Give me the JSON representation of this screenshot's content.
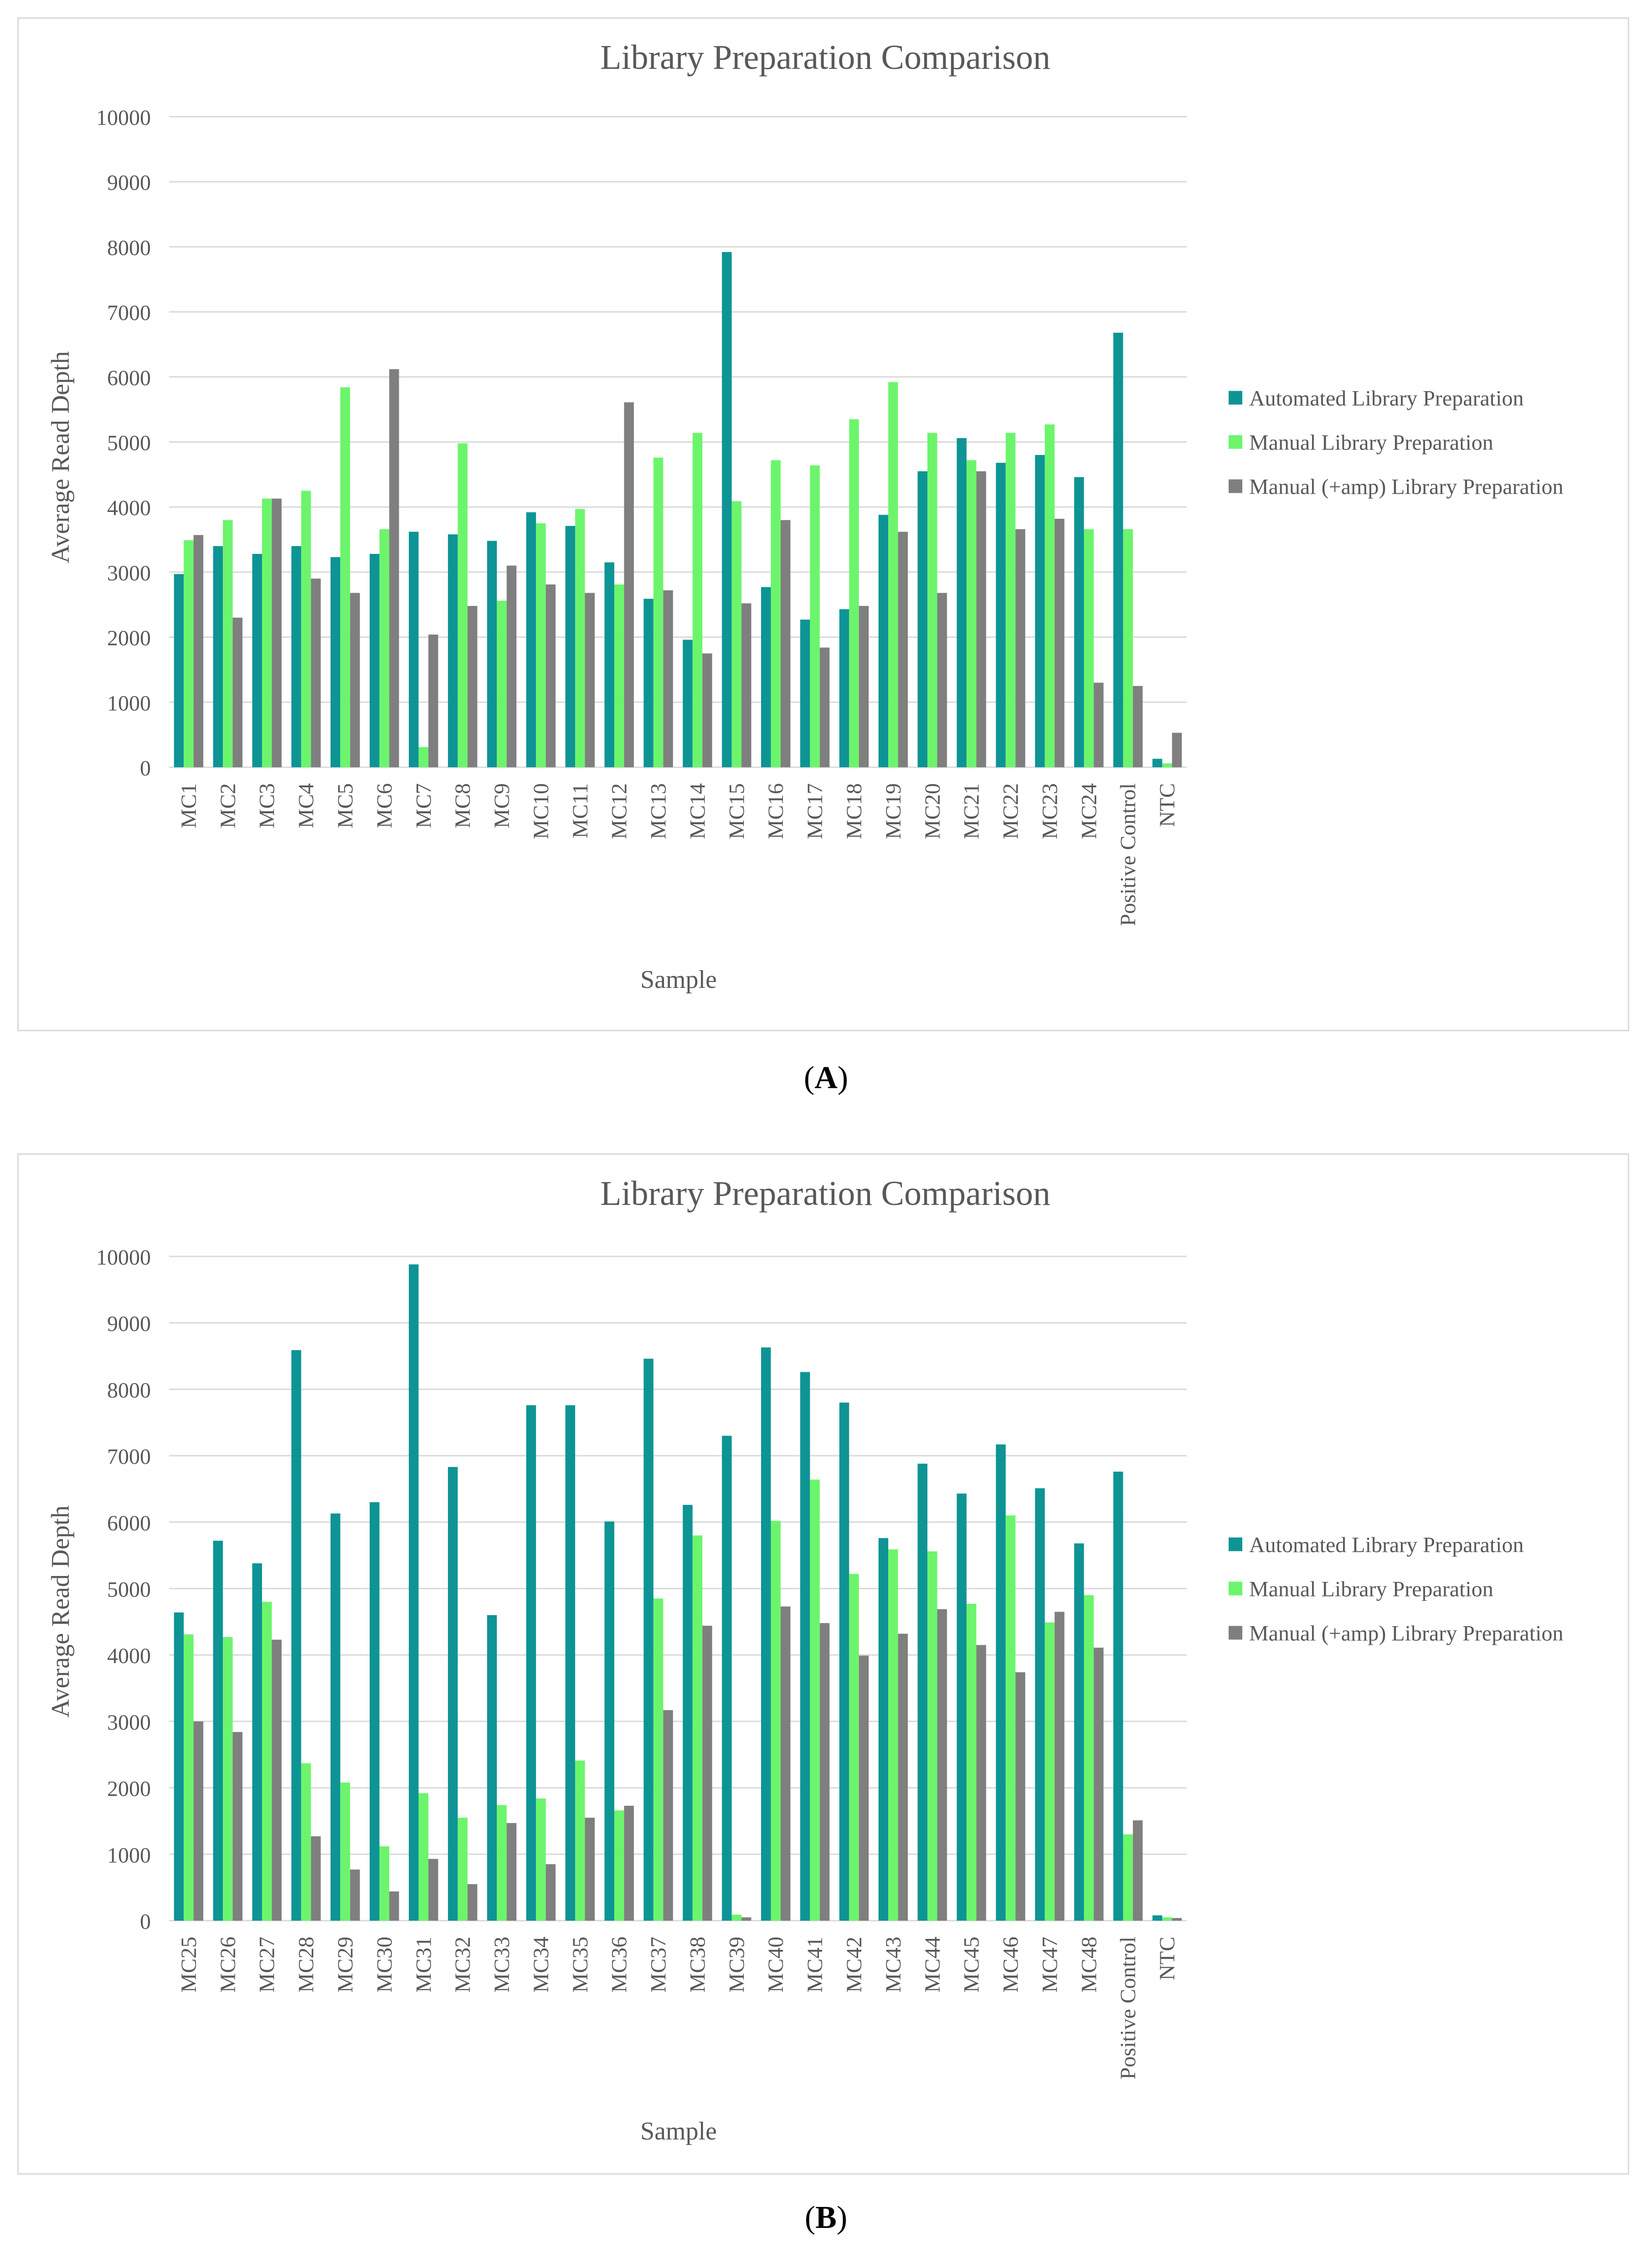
{
  "colors": {
    "automated": "#0e9494",
    "manual": "#6cf56c",
    "amp": "#7f7f7f",
    "grid": "#d9d9d9",
    "text": "#595959"
  },
  "panel_labels": {
    "a": "A",
    "b": "B"
  },
  "chart_data": [
    {
      "type": "bar",
      "title": "Library Preparation Comparison",
      "xlabel": "Sample",
      "ylabel": "Average Read Depth",
      "ylim": [
        0,
        10000
      ],
      "yticks": [
        0,
        1000,
        2000,
        3000,
        4000,
        5000,
        6000,
        7000,
        8000,
        9000,
        10000
      ],
      "legend_position": "right",
      "categories": [
        "MC1",
        "MC2",
        "MC3",
        "MC4",
        "MC5",
        "MC6",
        "MC7",
        "MC8",
        "MC9",
        "MC10",
        "MC11",
        "MC12",
        "MC13",
        "MC14",
        "MC15",
        "MC16",
        "MC17",
        "MC18",
        "MC19",
        "MC20",
        "MC21",
        "MC22",
        "MC23",
        "MC24",
        "Positive Control",
        "NTC"
      ],
      "series": [
        {
          "name": "Automated Library Preparation",
          "values": [
            2970,
            3400,
            3280,
            3400,
            3230,
            3280,
            3620,
            3580,
            3480,
            3920,
            3710,
            3150,
            2590,
            1960,
            7920,
            2770,
            2270,
            2430,
            3880,
            4550,
            5060,
            4680,
            4800,
            4460,
            6680,
            130
          ]
        },
        {
          "name": "Manual Library Preparation",
          "values": [
            3490,
            3800,
            4130,
            4250,
            5840,
            3660,
            310,
            4980,
            2560,
            3750,
            3970,
            2810,
            4760,
            5140,
            4090,
            4720,
            4640,
            5350,
            5920,
            5140,
            4720,
            5140,
            5270,
            3660,
            3660,
            60
          ]
        },
        {
          "name": "Manual (+amp) Library Preparation",
          "values": [
            3570,
            2300,
            4130,
            2900,
            2680,
            6120,
            2040,
            2480,
            3100,
            2810,
            2680,
            5610,
            2720,
            1750,
            2520,
            3800,
            1840,
            2480,
            3620,
            2680,
            4550,
            3660,
            3820,
            1300,
            1250,
            530
          ]
        }
      ]
    },
    {
      "type": "bar",
      "title": "Library Preparation Comparison",
      "xlabel": "Sample",
      "ylabel": "Average Read Depth",
      "ylim": [
        0,
        10000
      ],
      "yticks": [
        0,
        1000,
        2000,
        3000,
        4000,
        5000,
        6000,
        7000,
        8000,
        9000,
        10000
      ],
      "legend_position": "right",
      "categories": [
        "MC25",
        "MC26",
        "MC27",
        "MC28",
        "MC29",
        "MC30",
        "MC31",
        "MC32",
        "MC33",
        "MC34",
        "MC35",
        "MC36",
        "MC37",
        "MC38",
        "MC39",
        "MC40",
        "MC41",
        "MC42",
        "MC43",
        "MC44",
        "MC45",
        "MC46",
        "MC47",
        "MC48",
        "Positive Control",
        "NTC"
      ],
      "series": [
        {
          "name": "Automated Library Preparation",
          "values": [
            4640,
            5720,
            5380,
            8590,
            6130,
            6300,
            9880,
            6830,
            4600,
            7760,
            7760,
            6010,
            8460,
            6260,
            7300,
            8630,
            8260,
            7800,
            5760,
            6880,
            6430,
            7170,
            6510,
            5680,
            6760,
            80
          ]
        },
        {
          "name": "Manual Library Preparation",
          "values": [
            4310,
            4270,
            4800,
            2370,
            2080,
            1120,
            1920,
            1550,
            1740,
            1840,
            2410,
            1660,
            4850,
            5800,
            90,
            6020,
            6640,
            5220,
            5590,
            5560,
            4770,
            6100,
            4490,
            4900,
            1300,
            50
          ]
        },
        {
          "name": "Manual (+amp) Library Preparation",
          "values": [
            3000,
            2840,
            4230,
            1270,
            770,
            440,
            930,
            550,
            1470,
            850,
            1550,
            1730,
            3170,
            4440,
            50,
            4730,
            4480,
            3990,
            4320,
            4690,
            4150,
            3740,
            4650,
            4110,
            1510,
            40
          ]
        }
      ]
    }
  ]
}
